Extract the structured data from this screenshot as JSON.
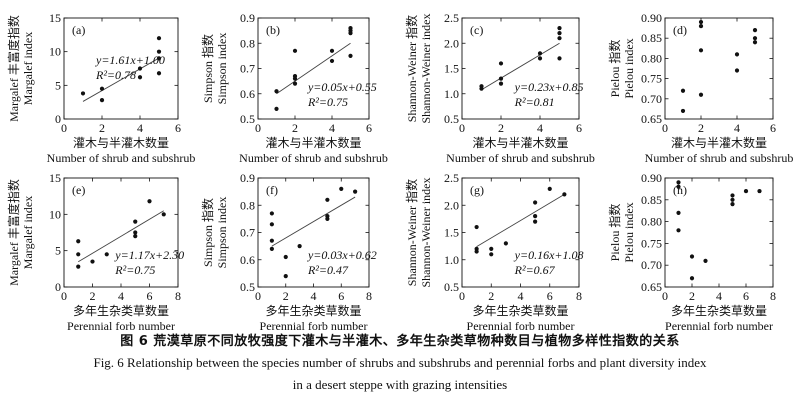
{
  "caption": {
    "cn": "图 6  荒漠草原不同放牧强度下灌木与半灌木、多年生杂类草物种数目与植物多样性指数的关系",
    "en_line1": "Fig. 6   Relationship between the species number of shrubs and subshrubs and perennial forbs and plant diversity index",
    "en_line2": "in a desert steppe with grazing intensities"
  },
  "chart_data": [
    {
      "panel": "(a)",
      "type": "scatter",
      "xlabel": "灌木与半灌木数量",
      "xlabel_en": "Number of shrub and subshrub",
      "ylabel": "Margalef 丰富度指数",
      "ylabel_en": "Margalef index",
      "xlim": [
        0,
        6
      ],
      "ylim": [
        0,
        15
      ],
      "xticks": [
        0,
        2,
        4,
        6
      ],
      "yticks": [
        0,
        5,
        10,
        15
      ],
      "points": [
        [
          1,
          3.8
        ],
        [
          2,
          4.5
        ],
        [
          2,
          2.8
        ],
        [
          4,
          6.2
        ],
        [
          4,
          7.5
        ],
        [
          5,
          6.8
        ],
        [
          5,
          9.0
        ],
        [
          5,
          10.0
        ],
        [
          5,
          12.0
        ]
      ],
      "fit": {
        "slope": 1.61,
        "intercept": 1.0,
        "x_range": [
          1,
          5
        ]
      },
      "equation": "y=1.61x+1.00",
      "r2": "R²=0.78",
      "eq_pos": "upper-left"
    },
    {
      "panel": "(b)",
      "type": "scatter",
      "xlabel": "灌木与半灌木数量",
      "xlabel_en": "Number of shrub and subshrub",
      "ylabel": "Simpson 指数",
      "ylabel_en": "Simpson index",
      "xlim": [
        0,
        6
      ],
      "ylim": [
        0.5,
        0.9
      ],
      "xticks": [
        0,
        2,
        4,
        6
      ],
      "yticks": [
        0.5,
        0.6,
        0.7,
        0.8,
        0.9
      ],
      "points": [
        [
          1,
          0.61
        ],
        [
          1,
          0.54
        ],
        [
          2,
          0.66
        ],
        [
          2,
          0.64
        ],
        [
          2,
          0.67
        ],
        [
          2,
          0.77
        ],
        [
          4,
          0.73
        ],
        [
          4,
          0.77
        ],
        [
          5,
          0.75
        ],
        [
          5,
          0.84
        ],
        [
          5,
          0.85
        ],
        [
          5,
          0.86
        ]
      ],
      "fit": {
        "slope": 0.05,
        "intercept": 0.55,
        "x_range": [
          1,
          5
        ]
      },
      "equation": "y=0.05x+0.55",
      "r2": "R²=0.75",
      "eq_pos": "lower-right"
    },
    {
      "panel": "(c)",
      "type": "scatter",
      "xlabel": "灌木与半灌木数量",
      "xlabel_en": "Number of shrub and subshrub",
      "ylabel": "Shannon-Weiner 指数",
      "ylabel_en": "Shannon-Weiner index",
      "xlim": [
        0,
        6
      ],
      "ylim": [
        0.5,
        2.5
      ],
      "xticks": [
        0,
        2,
        4,
        6
      ],
      "yticks": [
        0.5,
        1.0,
        1.5,
        2.0,
        2.5
      ],
      "points": [
        [
          1,
          1.1
        ],
        [
          1,
          1.15
        ],
        [
          2,
          1.2
        ],
        [
          2,
          1.3
        ],
        [
          2,
          1.6
        ],
        [
          4,
          1.7
        ],
        [
          4,
          1.8
        ],
        [
          5,
          1.7
        ],
        [
          5,
          2.1
        ],
        [
          5,
          2.2
        ],
        [
          5,
          2.3
        ]
      ],
      "fit": {
        "slope": 0.23,
        "intercept": 0.85,
        "x_range": [
          1,
          5
        ]
      },
      "equation": "y=0.23x+0.85",
      "r2": "R²=0.81",
      "eq_pos": "lower-right"
    },
    {
      "panel": "(d)",
      "type": "scatter",
      "xlabel": "灌木与半灌木数量",
      "xlabel_en": "Number of shrub and subshrub",
      "ylabel": "Pielou 指数",
      "ylabel_en": "Pielou index",
      "xlim": [
        0,
        6
      ],
      "ylim": [
        0.65,
        0.9
      ],
      "xticks": [
        0,
        2,
        4,
        6
      ],
      "yticks": [
        0.65,
        0.7,
        0.75,
        0.8,
        0.85,
        0.9
      ],
      "points": [
        [
          1,
          0.72
        ],
        [
          1,
          0.67
        ],
        [
          2,
          0.89
        ],
        [
          2,
          0.88
        ],
        [
          2,
          0.82
        ],
        [
          2,
          0.71
        ],
        [
          4,
          0.81
        ],
        [
          4,
          0.77
        ],
        [
          5,
          0.84
        ],
        [
          5,
          0.85
        ],
        [
          5,
          0.87
        ]
      ],
      "fit": null,
      "equation": "",
      "r2": "",
      "eq_pos": ""
    },
    {
      "panel": "(e)",
      "type": "scatter",
      "xlabel": "多年生杂类草数量",
      "xlabel_en": "Perennial forb number",
      "ylabel": "Margalef 丰富度指数",
      "ylabel_en": "Margalef index",
      "xlim": [
        0,
        8
      ],
      "ylim": [
        0,
        15
      ],
      "xticks": [
        0,
        2,
        4,
        6,
        8
      ],
      "yticks": [
        0,
        5,
        10,
        15
      ],
      "points": [
        [
          1,
          6.3
        ],
        [
          1,
          4.5
        ],
        [
          1,
          2.8
        ],
        [
          2,
          3.5
        ],
        [
          3,
          4.5
        ],
        [
          5,
          7.0
        ],
        [
          5,
          7.5
        ],
        [
          5,
          9.0
        ],
        [
          6,
          11.8
        ],
        [
          7,
          10.0
        ]
      ],
      "fit": {
        "slope": 1.17,
        "intercept": 2.3,
        "x_range": [
          1,
          7
        ]
      },
      "equation": "y=1.17x+2.30",
      "r2": "R²=0.75",
      "eq_pos": "lower-right"
    },
    {
      "panel": "(f)",
      "type": "scatter",
      "xlabel": "多年生杂类草数量",
      "xlabel_en": "Perennial forb number",
      "ylabel": "Simpson 指数",
      "ylabel_en": "Simpson index",
      "xlim": [
        0,
        8
      ],
      "ylim": [
        0.5,
        0.9
      ],
      "xticks": [
        0,
        2,
        4,
        6,
        8
      ],
      "yticks": [
        0.5,
        0.6,
        0.7,
        0.8,
        0.9
      ],
      "points": [
        [
          1,
          0.77
        ],
        [
          1,
          0.73
        ],
        [
          1,
          0.67
        ],
        [
          1,
          0.64
        ],
        [
          2,
          0.61
        ],
        [
          2,
          0.54
        ],
        [
          3,
          0.65
        ],
        [
          5,
          0.75
        ],
        [
          5,
          0.76
        ],
        [
          5,
          0.82
        ],
        [
          6,
          0.86
        ],
        [
          7,
          0.85
        ]
      ],
      "fit": {
        "slope": 0.03,
        "intercept": 0.62,
        "x_range": [
          1,
          7
        ]
      },
      "equation": "y=0.03x+0.62",
      "r2": "R²=0.47",
      "eq_pos": "lower-right"
    },
    {
      "panel": "(g)",
      "type": "scatter",
      "xlabel": "多年生杂类草数量",
      "xlabel_en": "Perennial forb number",
      "ylabel": "Shannon-Weiner 指数",
      "ylabel_en": "Shannon-Weiner index",
      "xlim": [
        0,
        8
      ],
      "ylim": [
        0.5,
        2.5
      ],
      "xticks": [
        0,
        2,
        4,
        6,
        8
      ],
      "yticks": [
        0.5,
        1.0,
        1.5,
        2.0,
        2.5
      ],
      "points": [
        [
          1,
          1.6
        ],
        [
          1,
          1.2
        ],
        [
          1,
          1.15
        ],
        [
          2,
          1.1
        ],
        [
          2,
          1.2
        ],
        [
          3,
          1.3
        ],
        [
          5,
          1.7
        ],
        [
          5,
          1.8
        ],
        [
          5,
          2.05
        ],
        [
          6,
          2.3
        ],
        [
          7,
          2.2
        ]
      ],
      "fit": {
        "slope": 0.16,
        "intercept": 1.08,
        "x_range": [
          1,
          7
        ]
      },
      "equation": "y=0.16x+1.08",
      "r2": "R²=0.67",
      "eq_pos": "lower-right"
    },
    {
      "panel": "(h)",
      "type": "scatter",
      "xlabel": "多年生杂类草数量",
      "xlabel_en": "Perennial forb number",
      "ylabel": "Pielou 指数",
      "ylabel_en": "Pielou index",
      "xlim": [
        0,
        8
      ],
      "ylim": [
        0.65,
        0.9
      ],
      "xticks": [
        0,
        2,
        4,
        6,
        8
      ],
      "yticks": [
        0.65,
        0.7,
        0.75,
        0.8,
        0.85,
        0.9
      ],
      "points": [
        [
          1,
          0.89
        ],
        [
          1,
          0.88
        ],
        [
          1,
          0.82
        ],
        [
          1,
          0.78
        ],
        [
          2,
          0.72
        ],
        [
          2,
          0.67
        ],
        [
          3,
          0.71
        ],
        [
          5,
          0.84
        ],
        [
          5,
          0.85
        ],
        [
          5,
          0.86
        ],
        [
          6,
          0.87
        ],
        [
          7,
          0.87
        ]
      ],
      "fit": null,
      "equation": "",
      "r2": "",
      "eq_pos": ""
    }
  ]
}
